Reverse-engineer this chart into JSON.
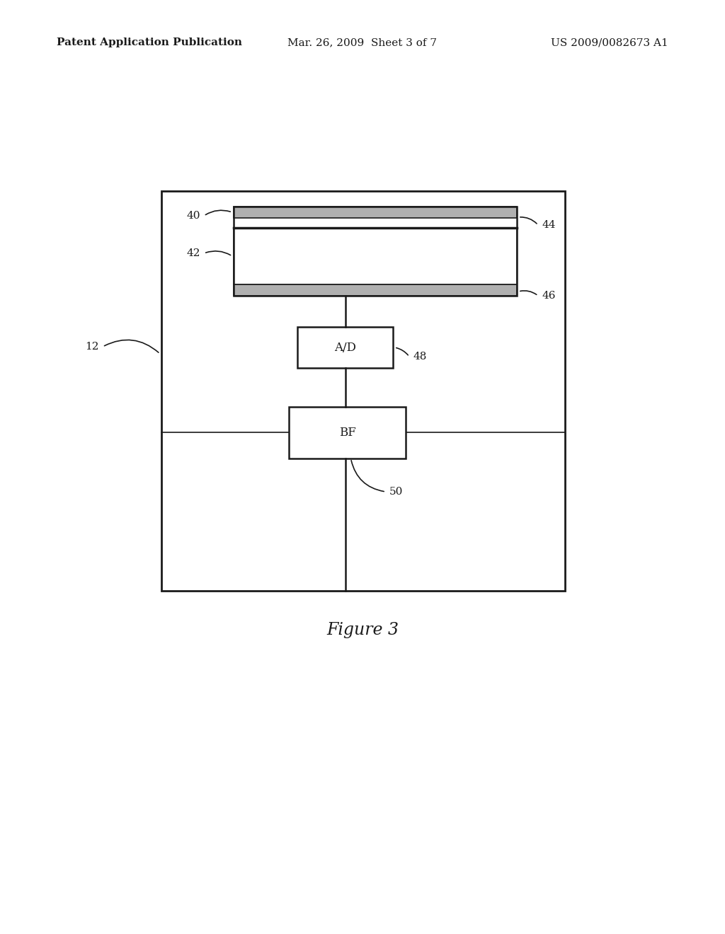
{
  "bg_color": "#ffffff",
  "line_color": "#1a1a1a",
  "header_left": "Patent Application Publication",
  "header_mid": "Mar. 26, 2009  Sheet 3 of 7",
  "header_right": "US 2009/0082673 A1",
  "caption": "Figure 3",
  "font_size_header": 11,
  "font_size_label": 11,
  "font_size_caption": 17
}
